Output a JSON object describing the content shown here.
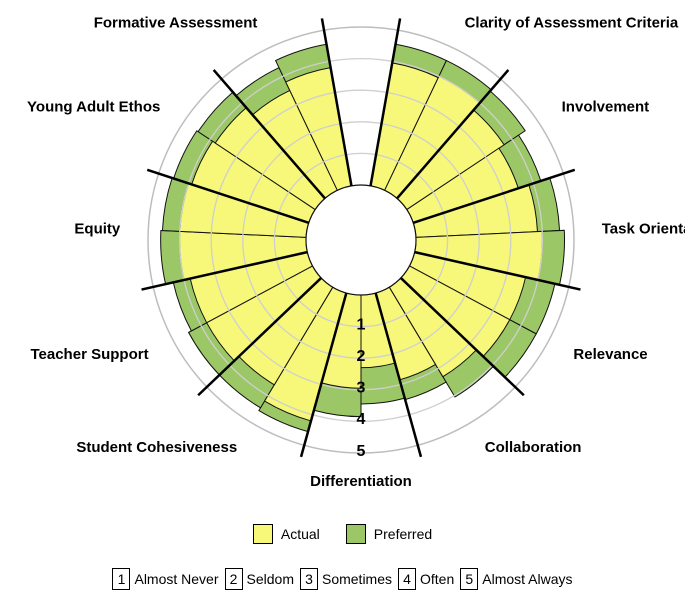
{
  "chart_data": {
    "type": "polar-bar",
    "title": "",
    "categories": [
      "Clarity of Assessment Criteria",
      "Involvement",
      "Task Orientation",
      "Relevance",
      "Collaboration",
      "Differentiation",
      "Student Cohesiveness",
      "Teacher Support",
      "Equity",
      "Young Adult Ethos",
      "Formative Assessment"
    ],
    "series": [
      {
        "name": "Actual",
        "color": "#f7f779",
        "values": [
          [
            3.95,
            4.0
          ],
          [
            3.7,
            3.5
          ],
          [
            3.85,
            4.0
          ],
          [
            3.6,
            3.6
          ],
          [
            3.3,
            2.85
          ],
          [
            2.3,
            2.95
          ],
          [
            4.2,
            3.6
          ],
          [
            3.8,
            3.8
          ],
          [
            4.0,
            4.0
          ],
          [
            3.9,
            3.8
          ],
          [
            3.5,
            3.8
          ]
        ]
      },
      {
        "name": "Preferred",
        "color": "#9bc766",
        "values": [
          [
            4.55,
            4.55
          ],
          [
            4.5,
            4.25
          ],
          [
            4.55,
            4.7
          ],
          [
            4.55,
            4.55
          ],
          [
            4.05,
            3.5
          ],
          [
            3.45,
            3.85
          ],
          [
            4.55,
            4.45
          ],
          [
            4.45,
            4.35
          ],
          [
            4.6,
            4.55
          ],
          [
            4.5,
            4.45
          ],
          [
            4.3,
            4.55
          ]
        ]
      }
    ],
    "radial_axis": {
      "min": 0,
      "max": 5,
      "ticks": [
        "1",
        "2",
        "3",
        "4",
        "5"
      ],
      "gridlines": true
    },
    "legend": {
      "position": "bottom"
    }
  },
  "scale": [
    {
      "num": "1",
      "label": "Almost Never"
    },
    {
      "num": "2",
      "label": "Seldom"
    },
    {
      "num": "3",
      "label": "Sometimes"
    },
    {
      "num": "4",
      "label": "Often"
    },
    {
      "num": "5",
      "label": "Almost Always"
    }
  ]
}
